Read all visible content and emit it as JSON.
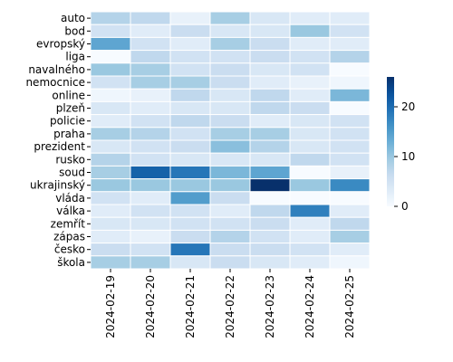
{
  "chart_data": {
    "type": "heatmap",
    "title": "",
    "xlabel": "",
    "ylabel": "",
    "x": [
      "2024-02-19",
      "2024-02-20",
      "2024-02-21",
      "2024-02-22",
      "2024-02-23",
      "2024-02-24",
      "2024-02-25"
    ],
    "y": [
      "auto",
      "bod",
      "evropský",
      "liga",
      "navalného",
      "nemocnice",
      "online",
      "plzeň",
      "policie",
      "praha",
      "prezident",
      "rusko",
      "soud",
      "ukrajinský",
      "vláda",
      "válka",
      "zemřít",
      "zápas",
      "česko",
      "škola"
    ],
    "values": [
      [
        8,
        7,
        2,
        9,
        4,
        3,
        3
      ],
      [
        5,
        3,
        6,
        4,
        4,
        10,
        5
      ],
      [
        14,
        5,
        3,
        9,
        6,
        3,
        3
      ],
      [
        0,
        7,
        5,
        5,
        6,
        5,
        8
      ],
      [
        10,
        9,
        5,
        6,
        4,
        5,
        0
      ],
      [
        5,
        9,
        9,
        6,
        3,
        2,
        1
      ],
      [
        1,
        2,
        7,
        4,
        7,
        3,
        12
      ],
      [
        4,
        3,
        4,
        4,
        7,
        6,
        0
      ],
      [
        3,
        5,
        7,
        6,
        3,
        4,
        5
      ],
      [
        9,
        8,
        5,
        9,
        9,
        4,
        5
      ],
      [
        4,
        5,
        6,
        11,
        8,
        4,
        5
      ],
      [
        8,
        5,
        4,
        4,
        4,
        7,
        5
      ],
      [
        9,
        21,
        19,
        12,
        14,
        0,
        2
      ],
      [
        10,
        10,
        10,
        10,
        26,
        10,
        17
      ],
      [
        5,
        3,
        15,
        6,
        0,
        0,
        0
      ],
      [
        3,
        5,
        5,
        3,
        7,
        18,
        3
      ],
      [
        4,
        4,
        5,
        5,
        6,
        3,
        7
      ],
      [
        3,
        2,
        6,
        8,
        5,
        3,
        9
      ],
      [
        6,
        5,
        19,
        6,
        6,
        5,
        3
      ],
      [
        9,
        9,
        4,
        6,
        4,
        3,
        1
      ]
    ],
    "colorbar": {
      "min": 0,
      "max": 26,
      "ticks": [
        0,
        10,
        20
      ],
      "colormap": "Blues"
    },
    "grid": false,
    "legend": "colorbar-right"
  }
}
